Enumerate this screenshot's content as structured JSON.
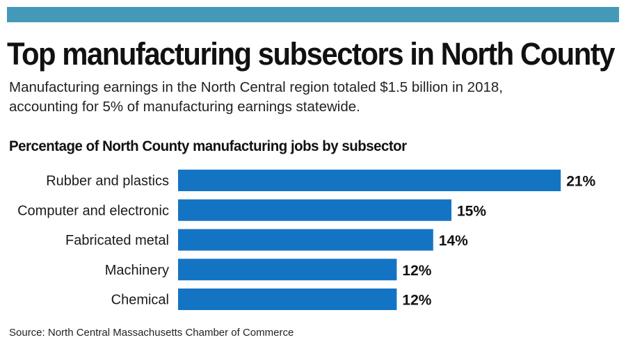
{
  "colors": {
    "accent_bar": "#4499b8",
    "bar": "#1474c4"
  },
  "header": {
    "title": "Top manufacturing subsectors in North County",
    "subtitle_line1": "Manufacturing earnings in the North Central region totaled $1.5 billion in 2018,",
    "subtitle_line2": "accounting for 5% of manufacturing earnings statewide."
  },
  "footer": {
    "source": "Source: North Central Massachusetts Chamber of Commerce"
  },
  "chart_data": {
    "type": "bar",
    "orientation": "horizontal",
    "title": "Percentage of North County manufacturing jobs by subsector",
    "categories": [
      "Rubber and plastics",
      "Computer and electronic",
      "Fabricated metal",
      "Machinery",
      "Chemical"
    ],
    "values": [
      21,
      15,
      14,
      12,
      12
    ],
    "value_labels": [
      "21%",
      "15%",
      "14%",
      "12%",
      "12%"
    ],
    "unit": "%",
    "grid": false
  }
}
